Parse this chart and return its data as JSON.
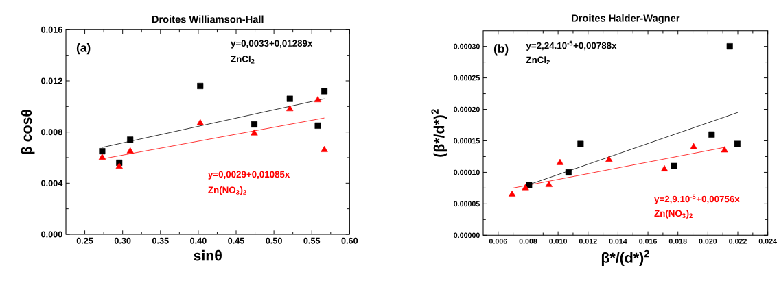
{
  "chart_data": [
    {
      "type": "scatter",
      "title": "Droites Williamson-Hall",
      "xlabel": "sinθ",
      "ylabel": "β cosθ",
      "annotations": [
        "(a)",
        "ZnCl$_{2}$",
        "Zn(NO$_{3}$)$_{2}$"
      ],
      "xlim": [
        0.225,
        0.6
      ],
      "ylim": [
        0,
        0.016
      ],
      "xticks": [
        {
          "value": 0.25,
          "label": "0.25"
        },
        {
          "value": 0.3,
          "label": "0.30"
        },
        {
          "value": 0.35,
          "label": "0.35"
        },
        {
          "value": 0.4,
          "label": "0.40"
        },
        {
          "value": 0.45,
          "label": "0.45"
        },
        {
          "value": 0.5,
          "label": "0.50"
        },
        {
          "value": 0.55,
          "label": "0.55"
        },
        {
          "value": 0.6,
          "label": "0.60"
        }
      ],
      "yticks": [
        {
          "value": 0,
          "label": "0.000"
        },
        {
          "value": 0.004,
          "label": "0.004"
        },
        {
          "value": 0.008,
          "label": "0.008"
        },
        {
          "value": 0.012,
          "label": "0.012"
        },
        {
          "value": 0.016,
          "label": "0.016"
        }
      ],
      "series": [
        {
          "color": "#000000",
          "type": "scatter",
          "marker": "square",
          "x": [
            0.273,
            0.2955,
            0.31,
            0.4026,
            0.474,
            0.521,
            0.558,
            0.5666
          ],
          "values": [
            0.0065,
            0.0056,
            0.0074,
            0.0116,
            0.0086,
            0.0106,
            0.0085,
            0.0112
          ]
        },
        {
          "name": "y=0,0033+0,01289x",
          "color": "#000000",
          "type": "line",
          "marker": "none",
          "line_style": "solid",
          "x": [
            0.273,
            0.5666
          ],
          "values": [
            0.0068,
            0.0106
          ]
        },
        {
          "color": "#ff0000",
          "type": "scatter",
          "marker": "triangle",
          "x": [
            0.273,
            0.2955,
            0.31,
            0.4026,
            0.474,
            0.521,
            0.558,
            0.5666
          ],
          "values": [
            0.006,
            0.0053,
            0.0065,
            0.0087,
            0.0079,
            0.0098,
            0.0105,
            0.0066
          ]
        },
        {
          "name": "y=0,0029+0,01085x",
          "color": "#ff0000",
          "type": "line",
          "marker": "none",
          "line_style": "solid",
          "x": [
            0.273,
            0.5666
          ],
          "values": [
            0.0059,
            0.0091
          ]
        }
      ]
    },
    {
      "type": "scatter",
      "title": "Droites Halder-Wagner",
      "xlabel": "β*/(d*)$^{2}$",
      "ylabel": "(β*/d*)$^{2}$",
      "annotations": [
        "(b)",
        "ZnCl$_{2}$",
        "Zn(NO$_{3}$)$_{2}$"
      ],
      "xlim": [
        0.005,
        0.024
      ],
      "ylim": [
        0,
        0.000325
      ],
      "xticks": [
        {
          "value": 0.006,
          "label": "0.006"
        },
        {
          "value": 0.008,
          "label": "0.008"
        },
        {
          "value": 0.01,
          "label": "0.010"
        },
        {
          "value": 0.012,
          "label": "0.012"
        },
        {
          "value": 0.014,
          "label": "0.014"
        },
        {
          "value": 0.016,
          "label": "0.016"
        },
        {
          "value": 0.018,
          "label": "0.018"
        },
        {
          "value": 0.02,
          "label": "0.020"
        },
        {
          "value": 0.022,
          "label": "0.022"
        },
        {
          "value": 0.024,
          "label": "0.024"
        }
      ],
      "yticks": [
        {
          "value": 0,
          "label": "0.00000"
        },
        {
          "value": 5e-05,
          "label": "0.00005"
        },
        {
          "value": 0.0001,
          "label": "0.00010"
        },
        {
          "value": 0.00015,
          "label": "0.00015"
        },
        {
          "value": 0.0002,
          "label": "0.00020"
        },
        {
          "value": 0.00025,
          "label": "0.00025"
        },
        {
          "value": 0.0003,
          "label": "0.00030"
        }
      ],
      "series": [
        {
          "color": "#000000",
          "type": "scatter",
          "marker": "square",
          "x": [
            0.00806,
            0.0107,
            0.0115,
            0.01775,
            0.02025,
            0.02146,
            0.02197
          ],
          "values": [
            8e-05,
            0.0001,
            0.000145,
            0.00011,
            0.00016,
            0.0003,
            0.000145
          ]
        },
        {
          "name": "y=2,24.10$^{-5}$+0,00788x",
          "color": "#000000",
          "type": "line",
          "marker": "none",
          "line_style": "solid",
          "x": [
            0.008,
            0.022
          ],
          "values": [
            8e-05,
            0.000195
          ]
        },
        {
          "name": "y=2,9.10$^{-5}$+0,00756x",
          "color": "#ff0000",
          "type": "line",
          "marker": "none",
          "line_style": "solid",
          "x": [
            0.007,
            0.0212
          ],
          "values": [
            7.5e-05,
            0.00014
          ]
        },
        {
          "color": "#ff0000",
          "type": "scatter",
          "marker": "triangle",
          "x": [
            0.00693,
            0.00782,
            0.00939,
            0.01013,
            0.0134,
            0.0171,
            0.01905,
            0.02111
          ],
          "values": [
            6.5e-05,
            7.5e-05,
            8e-05,
            0.000115,
            0.00012,
            0.000105,
            0.00014,
            0.000135
          ]
        }
      ]
    }
  ]
}
